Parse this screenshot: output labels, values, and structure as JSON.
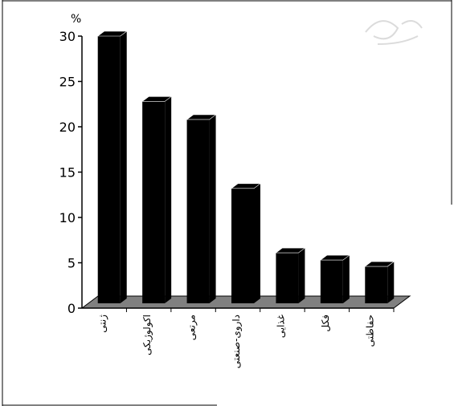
{
  "chart_data": {
    "type": "bar",
    "unit_label": "%",
    "categories": [
      "ژنتی",
      "اکولوژیکی",
      "مرتعی",
      "داروی-صنعتی",
      "غذایی",
      "فکل",
      "حفاظتی"
    ],
    "values": [
      30,
      22.8,
      20.8,
      13.2,
      6.1,
      5.3,
      4.6
    ],
    "yticks": [
      "0",
      "5",
      "10",
      "15",
      "20",
      "25",
      "30"
    ],
    "ylim": [
      0,
      30
    ],
    "colors": {
      "bar": "#000000",
      "floor": "#808080"
    },
    "grid": false,
    "legend": "none",
    "bar_style": "3d"
  },
  "watermark": {
    "text": "پژوهشگاه علوم انسانی"
  }
}
